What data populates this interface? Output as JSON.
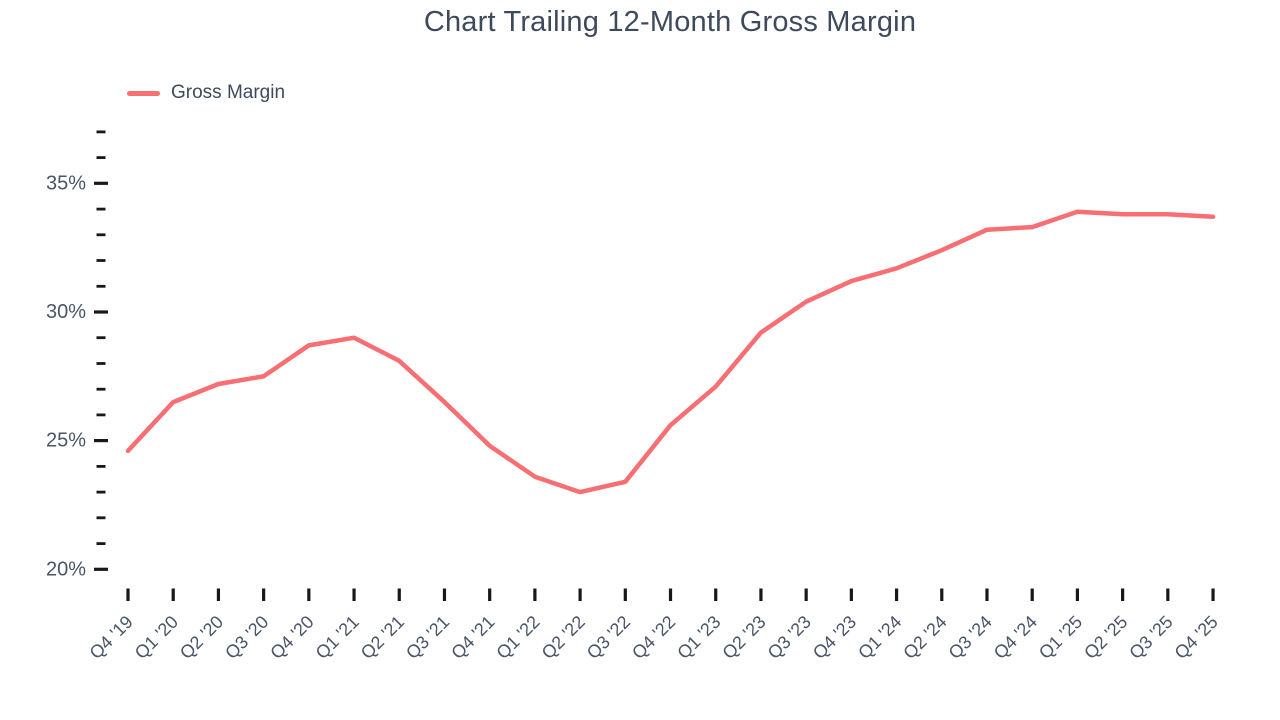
{
  "chart_data": {
    "type": "line",
    "title": "Chart Trailing 12-Month Gross Margin",
    "xlabel": "",
    "ylabel": "",
    "categories": [
      "Q4 '19",
      "Q1 '20",
      "Q2 '20",
      "Q3 '20",
      "Q4 '20",
      "Q1 '21",
      "Q2 '21",
      "Q3 '21",
      "Q4 '21",
      "Q1 '22",
      "Q2 '22",
      "Q3 '22",
      "Q4 '22",
      "Q1 '23",
      "Q2 '23",
      "Q3 '23",
      "Q4 '23",
      "Q1 '24",
      "Q2 '24",
      "Q3 '24",
      "Q4 '24",
      "Q1 '25",
      "Q2 '25",
      "Q3 '25",
      "Q4 '25"
    ],
    "series": [
      {
        "name": "Gross Margin",
        "values": [
          24.6,
          26.5,
          27.2,
          27.5,
          28.7,
          29.0,
          28.1,
          26.5,
          24.8,
          23.6,
          23.0,
          23.4,
          25.6,
          27.1,
          29.2,
          30.4,
          31.2,
          31.7,
          32.4,
          33.2,
          33.3,
          33.9,
          33.8,
          33.8,
          33.7
        ]
      }
    ],
    "ylim": [
      20,
      37
    ],
    "y_major_tick_step": 5,
    "y_minor_tick_step": 1,
    "y_major_tick_labels": [
      "20%",
      "25%",
      "30%",
      "35%"
    ],
    "y_tick_suffix": "%",
    "x_label_rotation_deg": -45,
    "grid": false,
    "legend_position": "top-left",
    "axes_lines": "none"
  },
  "colors": {
    "series_line": "#F76E73",
    "title_text": "#3E4A5C",
    "axis_label_text": "#4A5568",
    "tick_mark": "#15181D",
    "background": "#FFFFFF"
  }
}
